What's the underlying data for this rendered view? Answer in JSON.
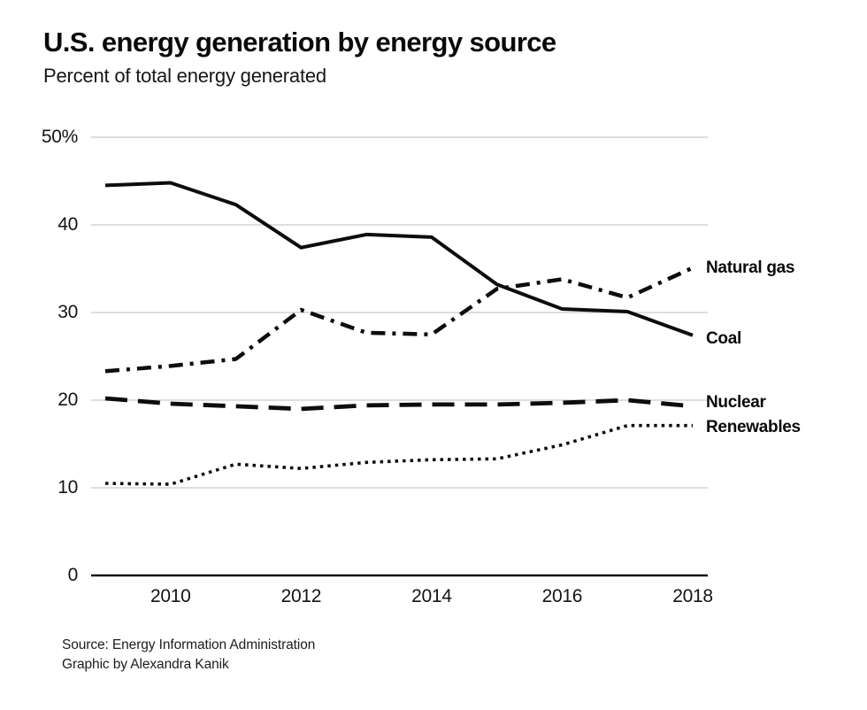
{
  "page": {
    "title": "U.S. energy generation by energy source",
    "subtitle": "Percent of total energy generated",
    "source_line1": "Source: Energy Information Administration",
    "source_line2": "Graphic by Alexandra Kanik"
  },
  "chart_data": {
    "type": "line",
    "title": "U.S. energy generation by energy source",
    "subtitle": "Percent of total energy generated",
    "xlabel": "",
    "ylabel": "Percent of total energy generated",
    "x": [
      2009,
      2010,
      2011,
      2012,
      2013,
      2014,
      2015,
      2016,
      2017,
      2018
    ],
    "series": [
      {
        "name": "Coal",
        "style": "solid",
        "values": [
          44.5,
          44.8,
          42.3,
          37.4,
          38.9,
          38.6,
          33.2,
          30.4,
          30.1,
          27.4
        ]
      },
      {
        "name": "Natural gas",
        "style": "dash-dot",
        "values": [
          23.3,
          23.9,
          24.7,
          30.3,
          27.7,
          27.5,
          32.7,
          33.8,
          31.7,
          35.1
        ]
      },
      {
        "name": "Nuclear",
        "style": "dashed",
        "values": [
          20.2,
          19.6,
          19.3,
          19.0,
          19.4,
          19.5,
          19.5,
          19.7,
          20.0,
          19.3
        ]
      },
      {
        "name": "Renewables",
        "style": "dotted",
        "values": [
          10.5,
          10.4,
          12.7,
          12.2,
          12.9,
          13.2,
          13.3,
          14.9,
          17.1,
          17.1
        ]
      }
    ],
    "ylim": [
      0,
      50
    ],
    "yticks": [
      {
        "value": 0,
        "label": "0"
      },
      {
        "value": 10,
        "label": "10"
      },
      {
        "value": 20,
        "label": "20"
      },
      {
        "value": 30,
        "label": "30"
      },
      {
        "value": 40,
        "label": "40"
      },
      {
        "value": 50,
        "label": "50%"
      }
    ],
    "xticks": [
      {
        "value": 2010,
        "label": "2010"
      },
      {
        "value": 2012,
        "label": "2012"
      },
      {
        "value": 2014,
        "label": "2014"
      },
      {
        "value": 2016,
        "label": "2016"
      },
      {
        "value": 2018,
        "label": "2018"
      }
    ],
    "grid": "horizontal",
    "legend_position": "right-end-of-lines",
    "colors": {
      "line": "#0d0d0d",
      "grid": "#c9c9c9",
      "axis": "#141414",
      "background": "#ffffff",
      "text": "#141414"
    }
  }
}
